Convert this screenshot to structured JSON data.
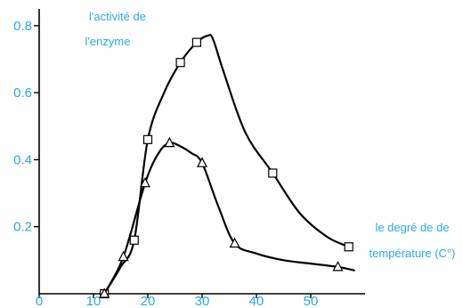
{
  "chart_data": {
    "type": "line",
    "title": "",
    "ylabel_lines": [
      "l'activité de",
      "l'enzyme"
    ],
    "xlabel_lines": [
      "le degré de de",
      "température (C°)"
    ],
    "xlim": [
      0,
      60
    ],
    "ylim": [
      0,
      0.85
    ],
    "x_ticks": [
      0,
      10,
      20,
      30,
      40,
      50
    ],
    "x_tick_labels": [
      "0",
      "10",
      "20",
      "30",
      "40",
      "50"
    ],
    "y_ticks": [
      0.2,
      0.4,
      0.6,
      0.8
    ],
    "y_tick_labels": [
      "0.2",
      "0.4",
      "0.6",
      "0.8"
    ],
    "grid": false,
    "series": [
      {
        "marker": "square",
        "x": [
          12,
          17.5,
          20,
          26,
          29,
          43,
          57
        ],
        "y": [
          0,
          0.16,
          0.46,
          0.69,
          0.75,
          0.36,
          0.14
        ],
        "curve_x": [
          12,
          15,
          17.5,
          20,
          23,
          26,
          29,
          31,
          32,
          34,
          38,
          43,
          48,
          53,
          57
        ],
        "curve_y": [
          0,
          0.08,
          0.16,
          0.46,
          0.6,
          0.69,
          0.75,
          0.77,
          0.76,
          0.66,
          0.48,
          0.36,
          0.24,
          0.17,
          0.14
        ]
      },
      {
        "marker": "triangle",
        "x": [
          12,
          15.5,
          19.5,
          24,
          30,
          36,
          55
        ],
        "y": [
          0,
          0.11,
          0.33,
          0.45,
          0.39,
          0.15,
          0.08
        ],
        "curve_x": [
          12,
          15.5,
          19.5,
          22,
          24,
          26,
          28,
          30,
          33,
          36,
          40,
          45,
          50,
          55,
          58
        ],
        "curve_y": [
          0,
          0.11,
          0.33,
          0.42,
          0.45,
          0.44,
          0.42,
          0.39,
          0.26,
          0.15,
          0.12,
          0.1,
          0.09,
          0.08,
          0.07
        ]
      }
    ],
    "colors": {
      "axis": "#000000",
      "line": "#000000",
      "text": "#29abe2"
    }
  }
}
